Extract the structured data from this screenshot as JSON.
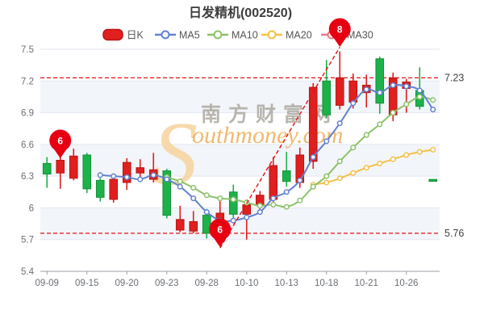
{
  "title": "日发精机(002520)",
  "watermark": {
    "s": "S",
    "cn": "南方财富网",
    "en": "outhmoney.com"
  },
  "legend": [
    {
      "label": "日K",
      "type": "candle",
      "color": "#e01f1f"
    },
    {
      "label": "MA5",
      "type": "line",
      "color": "#6282cf"
    },
    {
      "label": "MA10",
      "type": "line",
      "color": "#8cc269"
    },
    {
      "label": "MA20",
      "type": "line",
      "color": "#f5bf47"
    },
    {
      "label": "MA30",
      "type": "line",
      "color": "#ee7788"
    }
  ],
  "colors": {
    "up": "#e01f1f",
    "up_border": "#bb1515",
    "down": "#1db14a",
    "down_border": "#149138",
    "ma5": "#6282cf",
    "ma10": "#8cc269",
    "ma20": "#f5bf47",
    "annotation_red": "#e31212",
    "pin_red": "#e60012",
    "grid": "#e3e7f1",
    "band": "#f2f5fa",
    "axis": "#9aa0a6"
  },
  "chart_data": {
    "type": "candlestick",
    "title": "日发精机(002520)",
    "ylim": [
      5.4,
      7.5
    ],
    "y_ticks": [
      "7.5",
      "7.2",
      "6.9",
      "6.6",
      "6.3",
      "6",
      "5.7",
      "5.4"
    ],
    "y_tick_values": [
      7.5,
      7.2,
      6.9,
      6.6,
      6.3,
      6.0,
      5.7,
      5.4
    ],
    "banded_rows": [
      [
        7.2,
        6.9
      ],
      [
        6.6,
        6.3
      ],
      [
        6.0,
        5.7
      ]
    ],
    "x_tick_labels": [
      "09-09",
      "09-15",
      "09-20",
      "09-23",
      "09-28",
      "10-10",
      "10-13",
      "10-18",
      "10-21",
      "10-26"
    ],
    "x_tick_every": 3,
    "dates": [
      "09-09",
      "09-13",
      "09-14",
      "09-15",
      "09-16",
      "09-19",
      "09-20",
      "09-21",
      "09-22",
      "09-23",
      "09-26",
      "09-27",
      "09-28",
      "09-29",
      "09-30",
      "10-10",
      "10-11",
      "10-12",
      "10-13",
      "10-14",
      "10-17",
      "10-18",
      "10-19",
      "10-20",
      "10-21",
      "10-24",
      "10-25",
      "10-26",
      "10-27",
      "10-28"
    ],
    "candles": [
      {
        "open": 6.42,
        "close": 6.32,
        "high": 6.48,
        "low": 6.19
      },
      {
        "open": 6.33,
        "close": 6.45,
        "high": 6.49,
        "low": 6.18
      },
      {
        "open": 6.28,
        "close": 6.49,
        "high": 6.56,
        "low": 6.26
      },
      {
        "open": 6.5,
        "close": 6.18,
        "high": 6.52,
        "low": 6.14
      },
      {
        "open": 6.26,
        "close": 6.1,
        "high": 6.28,
        "low": 6.06
      },
      {
        "open": 6.08,
        "close": 6.27,
        "high": 6.3,
        "low": 6.05
      },
      {
        "open": 6.24,
        "close": 6.43,
        "high": 6.47,
        "low": 6.17
      },
      {
        "open": 6.33,
        "close": 6.38,
        "high": 6.46,
        "low": 6.25
      },
      {
        "open": 6.27,
        "close": 6.36,
        "high": 6.52,
        "low": 6.24
      },
      {
        "open": 6.35,
        "close": 5.93,
        "high": 6.37,
        "low": 5.9
      },
      {
        "open": 5.79,
        "close": 5.89,
        "high": 6.02,
        "low": 5.77
      },
      {
        "open": 5.78,
        "close": 5.87,
        "high": 5.97,
        "low": 5.76
      },
      {
        "open": 5.93,
        "close": 5.76,
        "high": 5.99,
        "low": 5.71
      },
      {
        "open": 5.72,
        "close": 5.95,
        "high": 6.11,
        "low": 5.67
      },
      {
        "open": 6.15,
        "close": 5.94,
        "high": 6.22,
        "low": 5.88
      },
      {
        "open": 5.94,
        "close": 6.03,
        "high": 6.08,
        "low": 5.7
      },
      {
        "open": 6.02,
        "close": 6.12,
        "high": 6.16,
        "low": 5.96
      },
      {
        "open": 6.08,
        "close": 6.4,
        "high": 6.48,
        "low": 6.03
      },
      {
        "open": 6.35,
        "close": 6.25,
        "high": 6.53,
        "low": 6.2
      },
      {
        "open": 6.24,
        "close": 6.5,
        "high": 6.57,
        "low": 6.19
      },
      {
        "open": 6.44,
        "close": 7.14,
        "high": 7.18,
        "low": 6.37
      },
      {
        "open": 7.2,
        "close": 6.88,
        "high": 7.4,
        "low": 6.85
      },
      {
        "open": 6.97,
        "close": 7.23,
        "high": 7.48,
        "low": 6.93
      },
      {
        "open": 7.0,
        "close": 7.2,
        "high": 7.27,
        "low": 6.94
      },
      {
        "open": 7.09,
        "close": 7.16,
        "high": 7.26,
        "low": 6.95
      },
      {
        "open": 7.41,
        "close": 6.99,
        "high": 7.43,
        "low": 6.89
      },
      {
        "open": 6.88,
        "close": 7.23,
        "high": 7.28,
        "low": 6.82
      },
      {
        "open": 7.13,
        "close": 7.19,
        "high": 7.22,
        "low": 6.9
      },
      {
        "open": 7.11,
        "close": 6.96,
        "high": 7.33,
        "low": 6.93
      },
      {
        "open": 6.26,
        "close": 6.26,
        "high": 6.26,
        "low": 6.26
      }
    ],
    "series": [
      {
        "name": "MA5",
        "start_index": 4,
        "values": [
          6.31,
          6.3,
          6.29,
          6.27,
          6.31,
          6.27,
          6.2,
          6.09,
          5.96,
          5.88,
          5.88,
          5.91,
          5.96,
          6.09,
          6.15,
          6.26,
          6.48,
          6.63,
          6.8,
          6.99,
          7.12,
          7.09,
          7.16,
          7.15,
          7.11,
          6.93
        ]
      },
      {
        "name": "MA10",
        "start_index": 9,
        "values": [
          6.29,
          6.25,
          6.19,
          6.12,
          6.09,
          6.08,
          6.05,
          6.02,
          6.03,
          6.01,
          6.07,
          6.2,
          6.3,
          6.44,
          6.57,
          6.69,
          6.79,
          6.9,
          6.98,
          7.05,
          7.02
        ]
      },
      {
        "name": "MA20",
        "start_index": 20,
        "values": [
          6.22,
          6.24,
          6.28,
          6.33,
          6.38,
          6.42,
          6.46,
          6.5,
          6.53,
          6.55
        ]
      }
    ],
    "hlines": [
      {
        "value": 7.23,
        "label": "7.23"
      },
      {
        "value": 5.76,
        "label": "5.76"
      }
    ],
    "pins": [
      {
        "label": "6",
        "x_index": 1,
        "bulb_cy": 174
      },
      {
        "label": "6",
        "x_index": 13,
        "bulb_cy": 284
      },
      {
        "label": "8",
        "x_index": 22,
        "bulb_cy": 36
      }
    ],
    "trendline": {
      "from_index": 13,
      "from_value": 5.62,
      "to_index": 22,
      "to_value": 7.52
    },
    "legend_position": "top",
    "grid": true
  }
}
